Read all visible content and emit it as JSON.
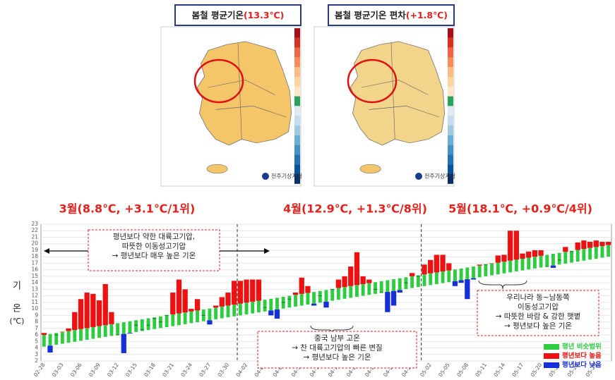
{
  "maps": [
    {
      "title": "봄철 평균기온",
      "title_value": "(13.3℃)",
      "logo": "전주기상지청"
    },
    {
      "title": "봄철 평균기온 편차",
      "title_value": "(+1.8℃)",
      "logo": "전주기상지청"
    }
  ],
  "chart_data": {
    "type": "range_bar",
    "month_labels": [
      "3월(8.8℃, +3.1℃/1위)",
      "4월(12.9℃, +1.3℃/8위)",
      "5월(18.1℃, +0.9℃/4위)"
    ],
    "y_label": [
      "기",
      "온",
      "(℃)"
    ],
    "categories": [
      "02-28",
      null,
      null,
      "03-03",
      null,
      null,
      "03-06",
      null,
      null,
      "03-09",
      null,
      null,
      "03-12",
      null,
      null,
      "03-15",
      null,
      null,
      "03-18",
      null,
      null,
      "03-21",
      null,
      null,
      "03-24",
      null,
      null,
      "03-27",
      null,
      null,
      "03-30",
      null,
      null,
      "04-02",
      null,
      null,
      "04-05",
      null,
      null,
      "04-08",
      null,
      null,
      "04-11",
      null,
      null,
      "04-14",
      null,
      null,
      "04-17",
      null,
      null,
      "04-20",
      null,
      null,
      "04-23",
      null,
      null,
      "04-26",
      null,
      null,
      "04-29",
      null,
      null,
      "05-02",
      null,
      null,
      "05-05",
      null,
      null,
      "05-08",
      null,
      null,
      "05-11",
      null,
      null,
      "05-14",
      null,
      null,
      "05-17",
      null,
      null,
      "05-20",
      null,
      null,
      "05-23",
      null,
      null,
      "05-26",
      null,
      null,
      "05-29",
      null,
      null
    ],
    "values": [
      6.3,
      3.3,
      6.0,
      6.5,
      7.0,
      9.5,
      11.5,
      12.5,
      12.3,
      11.3,
      13.8,
      9.5,
      6.0,
      3.2,
      6.2,
      7.5,
      6.8,
      7.5,
      8.5,
      8.0,
      9.0,
      12.5,
      14.5,
      13.0,
      10.0,
      11.5,
      9.0,
      7.6,
      10.5,
      11.8,
      12.5,
      14.3,
      14.3,
      14.5,
      14.5,
      14.5,
      10.2,
      9.0,
      8.5,
      11.0,
      11.5,
      12.5,
      14.8,
      13.5,
      10.5,
      12.0,
      10.2,
      13.0,
      14.5,
      15.0,
      16.5,
      18.7,
      15.0,
      14.5,
      13.0,
      12.5,
      9.5,
      10.5,
      12.5,
      14.0,
      15.5,
      15.0,
      16.8,
      17.5,
      18.3,
      18.3,
      17.0,
      13.5,
      14.0,
      11.5,
      14.5,
      16.8,
      16.8,
      17.0,
      18.2,
      18.3,
      22.0,
      22.0,
      18.5,
      18.8,
      19.0,
      19.0,
      16.5,
      16.3,
      17.5,
      19.5,
      18.8,
      20.2,
      20.5,
      20.3,
      20.5,
      20.3,
      20.3
    ],
    "normal_low": [
      4.2,
      4.35,
      4.5,
      4.65,
      4.8,
      4.95,
      5.1,
      5.25,
      5.4,
      5.55,
      5.7,
      5.85,
      6,
      6.15,
      6.3,
      6.45,
      6.6,
      6.75,
      6.9,
      7.05,
      7.2,
      7.35,
      7.5,
      7.65,
      7.8,
      7.95,
      8.1,
      8.25,
      8.4,
      8.55,
      8.7,
      8.85,
      9,
      9.15,
      9.3,
      9.45,
      9.6,
      9.75,
      9.9,
      10.05,
      10.2,
      10.35,
      10.5,
      10.65,
      10.8,
      10.95,
      11.1,
      11.25,
      11.4,
      11.55,
      11.7,
      11.85,
      12,
      12.15,
      12.3,
      12.45,
      12.6,
      12.75,
      12.9,
      13.05,
      13.2,
      13.35,
      13.5,
      13.65,
      13.8,
      13.95,
      14.1,
      14.25,
      14.4,
      14.55,
      14.7,
      14.85,
      15,
      15.15,
      15.3,
      15.45,
      15.6,
      15.75,
      15.9,
      16.05,
      16.2,
      16.35,
      16.5,
      16.65,
      16.8,
      16.95,
      17.1,
      17.25,
      17.4,
      17.55,
      17.7,
      17.85,
      18
    ],
    "normal_high": [
      6,
      6.15,
      6.3,
      6.45,
      6.6,
      6.75,
      6.9,
      7.05,
      7.2,
      7.35,
      7.5,
      7.65,
      7.8,
      7.95,
      8.1,
      8.25,
      8.4,
      8.55,
      8.7,
      8.85,
      9,
      9.15,
      9.3,
      9.45,
      9.6,
      9.75,
      9.9,
      10.05,
      10.2,
      10.35,
      10.5,
      10.65,
      10.8,
      10.95,
      11.1,
      11.25,
      11.4,
      11.55,
      11.7,
      11.85,
      12,
      12.15,
      12.3,
      12.45,
      12.6,
      12.75,
      12.9,
      13.05,
      13.2,
      13.35,
      13.5,
      13.65,
      13.8,
      13.95,
      14.1,
      14.25,
      14.4,
      14.55,
      14.7,
      14.85,
      15,
      15.15,
      15.3,
      15.45,
      15.6,
      15.75,
      15.9,
      16.05,
      16.2,
      16.35,
      16.5,
      16.65,
      16.8,
      16.95,
      17.1,
      17.25,
      17.4,
      17.55,
      17.7,
      17.85,
      18,
      18.15,
      18.3,
      18.45,
      18.6,
      18.75,
      18.9,
      19.05,
      19.2,
      19.35,
      19.5,
      19.65,
      19.8
    ],
    "legend": [
      {
        "name": "평년 비슷범위",
        "color": "#2ecc40"
      },
      {
        "name": "평년보다 높음",
        "color": "#ee1111"
      },
      {
        "name": "평년보다 낮음",
        "color": "#1530d8"
      }
    ],
    "ylim": [
      2,
      23
    ],
    "yticks": [
      2,
      3,
      4,
      5,
      6,
      7,
      8,
      9,
      10,
      11,
      12,
      13,
      14,
      15,
      16,
      17,
      18,
      19,
      20,
      21,
      22,
      23
    ],
    "grid": true,
    "annotations": [
      [
        "평년보다 약한 대륙고기압,",
        "따뜻한 이동성고기압",
        "→ 평년보다 매우 높은 기온"
      ],
      [
        "중국 남부 고온",
        "→ 찬 대륙고기압의 빠른 변질",
        "→ 평년보다 높은 기온"
      ],
      [
        "우리나라 동~남동쪽",
        "이동성고기압",
        "→ 따뜻한 바람 & 강한 햇볕",
        "→ 평년보다 높은 기온"
      ]
    ]
  }
}
